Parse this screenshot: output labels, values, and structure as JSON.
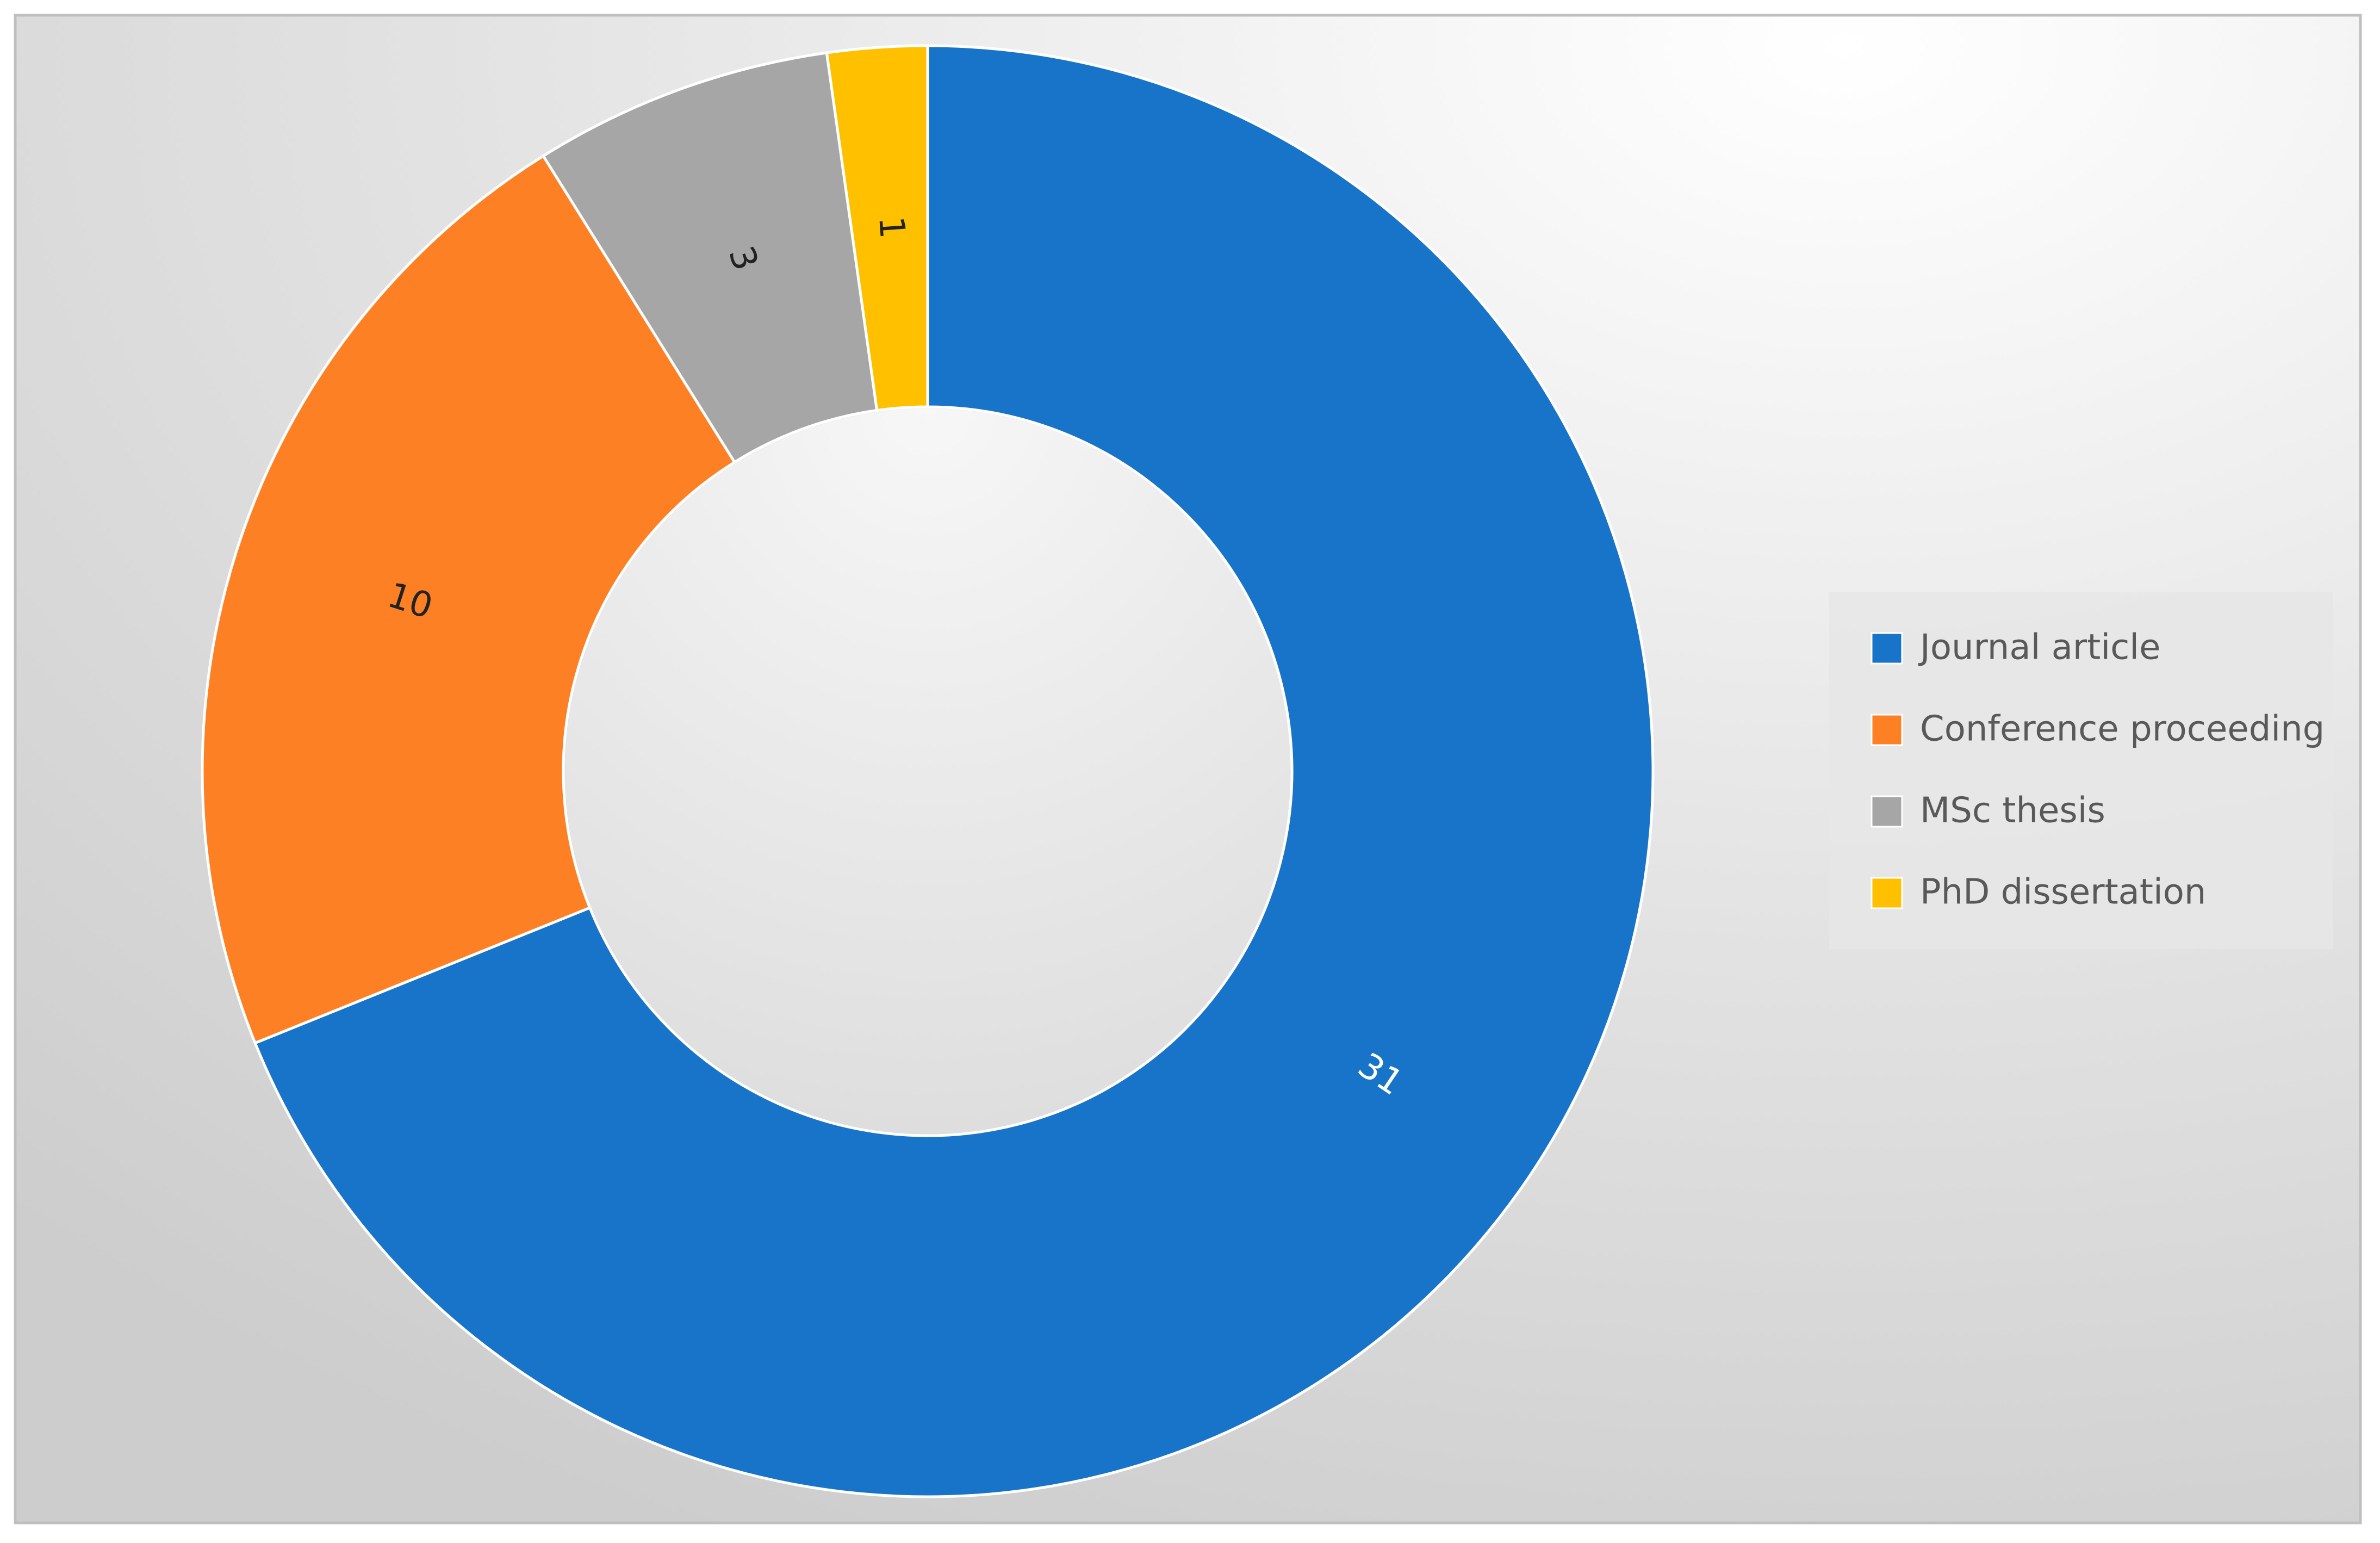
{
  "chart_data": {
    "type": "donut",
    "categories": [
      "Journal article",
      "Conference proceeding",
      "MSc thesis",
      "PhD dissertation"
    ],
    "values": [
      31,
      10,
      3,
      1
    ],
    "colors": [
      "#1874c8",
      "#fd8024",
      "#a6a6a6",
      "#ffc000"
    ],
    "legend": "right"
  }
}
